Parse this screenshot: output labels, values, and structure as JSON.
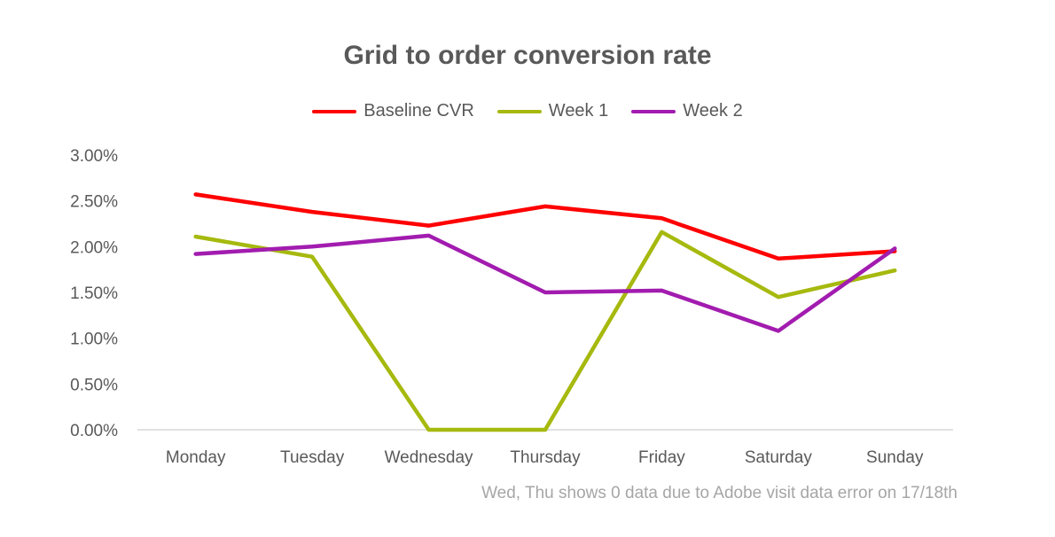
{
  "chart_data": {
    "type": "line",
    "title": "Grid to order conversion rate",
    "categories": [
      "Monday",
      "Tuesday",
      "Wednesday",
      "Thursday",
      "Friday",
      "Saturday",
      "Sunday"
    ],
    "y_ticks": [
      "0.00%",
      "0.50%",
      "1.00%",
      "1.50%",
      "2.00%",
      "2.50%",
      "3.00%"
    ],
    "ylim": [
      0,
      3.0
    ],
    "y_unit": "%",
    "grid": false,
    "legend_position": "top-center",
    "series": [
      {
        "name": "Baseline CVR",
        "color": "#ff0000",
        "values": [
          2.57,
          2.38,
          2.23,
          2.44,
          2.31,
          1.87,
          1.95
        ]
      },
      {
        "name": "Week 1",
        "color": "#a6b90e",
        "values": [
          2.11,
          1.89,
          0.0,
          0.0,
          2.16,
          1.45,
          1.74
        ]
      },
      {
        "name": "Week 2",
        "color": "#a21caf",
        "values": [
          1.92,
          2.0,
          2.12,
          1.5,
          1.52,
          1.08,
          1.98
        ]
      }
    ],
    "annotation": "Wed, Thu shows 0 data due to Adobe visit data error on 17/18th"
  }
}
